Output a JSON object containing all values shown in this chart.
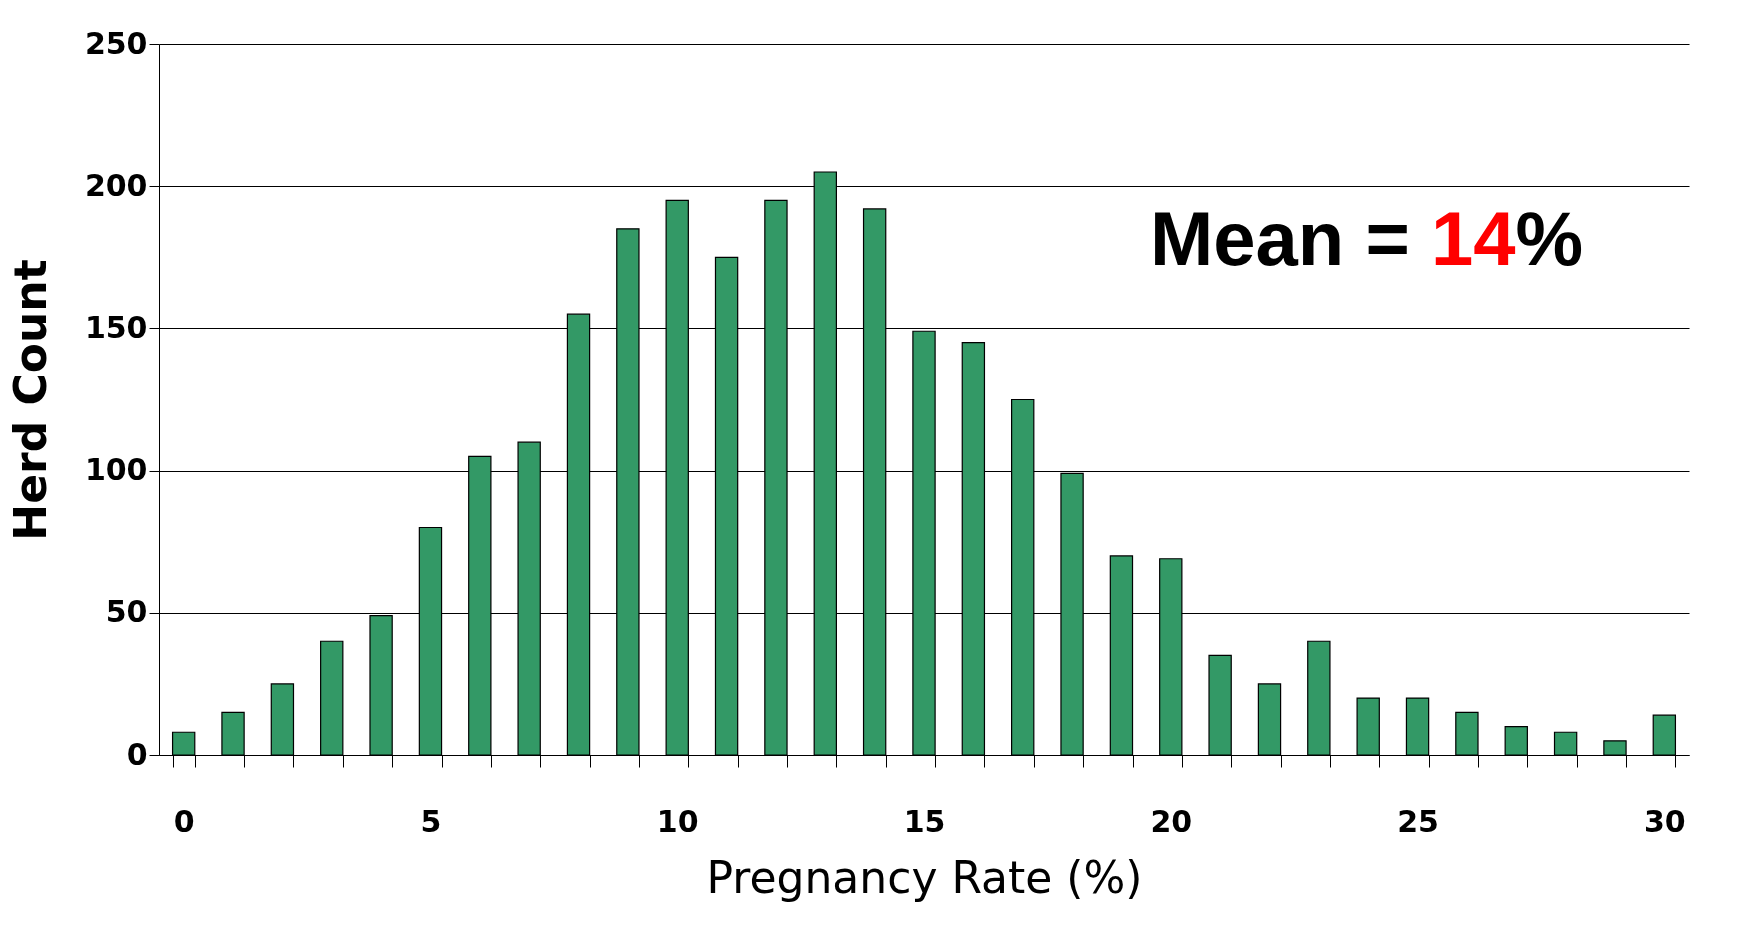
{
  "chart_data": {
    "type": "bar",
    "xlabel": "Pregnancy Rate (%)",
    "ylabel": "Herd Count",
    "categories": [
      "0",
      null,
      null,
      null,
      null,
      "5",
      null,
      null,
      null,
      null,
      "10",
      null,
      null,
      null,
      null,
      "15",
      null,
      null,
      null,
      null,
      "20",
      null,
      null,
      null,
      null,
      "25",
      null,
      null,
      null,
      null,
      "30"
    ],
    "values": [
      8,
      15,
      25,
      40,
      49,
      80,
      105,
      110,
      155,
      185,
      195,
      175,
      195,
      205,
      192,
      149,
      145,
      125,
      99,
      70,
      69,
      35,
      25,
      40,
      20,
      20,
      15,
      10,
      8,
      5,
      14
    ],
    "color": "#339966",
    "ylim": [
      0,
      250
    ],
    "yticks": [
      0,
      50,
      100,
      150,
      200,
      250
    ],
    "grid": "y",
    "annotations": [
      "Mean = 14%"
    ]
  }
}
